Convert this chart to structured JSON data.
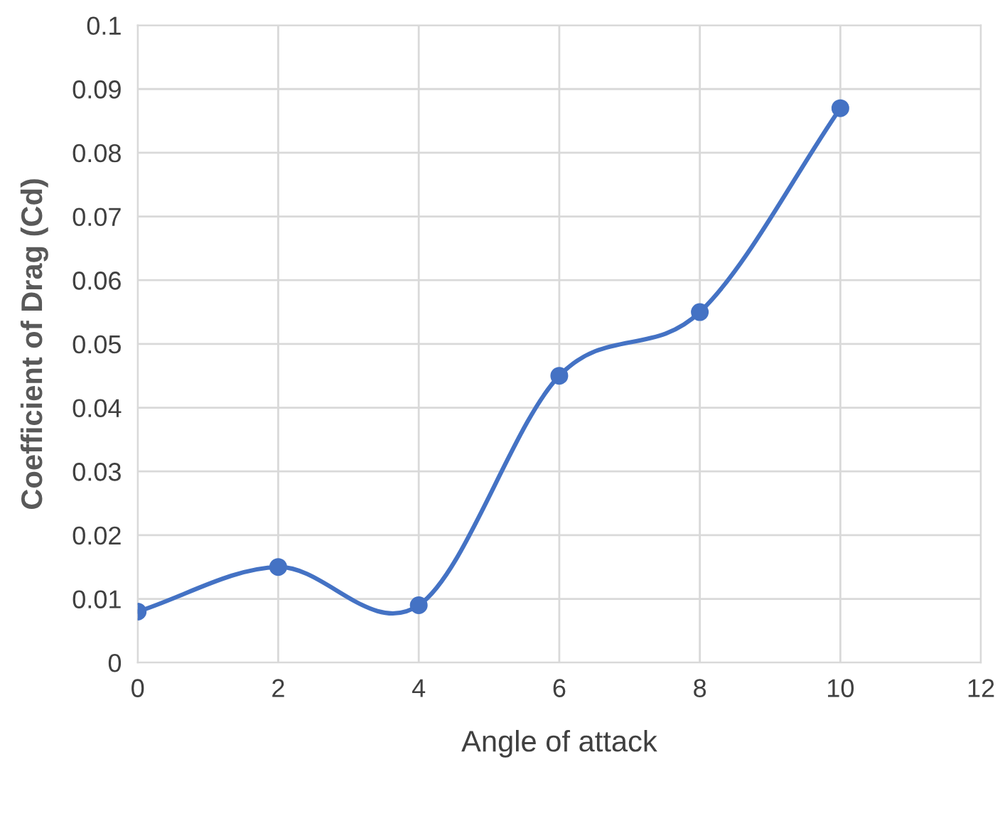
{
  "chart_data": {
    "type": "line",
    "xlabel": "Angle of attack",
    "ylabel": "Coefficient of Drag (Cd)",
    "series": [
      {
        "x": [
          0,
          2,
          4,
          6,
          8,
          10
        ],
        "values": [
          0.008,
          0.015,
          0.009,
          0.045,
          0.055,
          0.087
        ],
        "color": "#4472c4"
      }
    ],
    "xlim": [
      0,
      12
    ],
    "xticks": [
      0,
      2,
      4,
      6,
      8,
      10,
      12
    ],
    "ylim": [
      0,
      0.1
    ],
    "yticks": [
      0,
      0.01,
      0.02,
      0.03,
      0.04,
      0.05,
      0.06,
      0.07,
      0.08,
      0.09,
      0.1
    ],
    "grid": true,
    "marker": "circle",
    "line_style": "solid",
    "legend": false
  }
}
